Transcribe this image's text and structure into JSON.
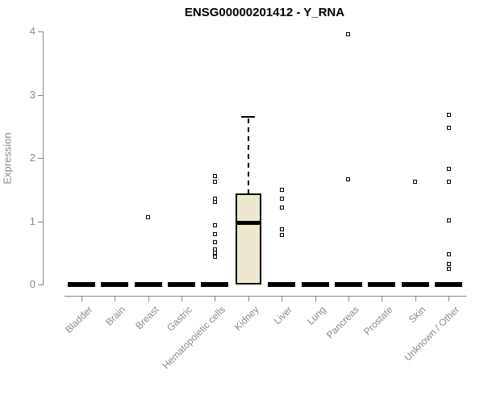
{
  "chart_data": {
    "type": "boxplot",
    "title": "ENSG00000201412 - Y_RNA",
    "ylabel": "Expression",
    "xlabel": "",
    "ylim": [
      0,
      4
    ],
    "yticks": [
      0,
      1,
      2,
      3,
      4
    ],
    "grid": false,
    "legend": null,
    "categories": [
      "Bladder",
      "Brain",
      "Breast",
      "Gastric",
      "Hematopoietic cells",
      "Kidney",
      "Liver",
      "Lung",
      "Pancreas",
      "Prostate",
      "Skin",
      "Unknown / Other"
    ],
    "boxes": [
      {
        "category": "Bladder",
        "min": 0,
        "q1": 0,
        "median": 0,
        "q3": 0,
        "max": 0,
        "outliers": []
      },
      {
        "category": "Brain",
        "min": 0,
        "q1": 0,
        "median": 0,
        "q3": 0,
        "max": 0,
        "outliers": []
      },
      {
        "category": "Breast",
        "min": 0,
        "q1": 0,
        "median": 0,
        "q3": 0,
        "max": 0,
        "outliers": [
          1.06
        ]
      },
      {
        "category": "Gastric",
        "min": 0,
        "q1": 0,
        "median": 0,
        "q3": 0,
        "max": 0,
        "outliers": []
      },
      {
        "category": "Hematopoietic cells",
        "min": 0,
        "q1": 0,
        "median": 0,
        "q3": 0,
        "max": 0,
        "outliers": [
          1.71,
          1.63,
          1.36,
          1.31,
          0.93,
          0.8,
          0.67,
          0.56,
          0.5,
          0.44
        ]
      },
      {
        "category": "Kidney",
        "min": 0,
        "q1": 0,
        "median": 0.97,
        "q3": 1.44,
        "max": 2.65,
        "outliers": []
      },
      {
        "category": "Liver",
        "min": 0,
        "q1": 0,
        "median": 0,
        "q3": 0,
        "max": 0,
        "outliers": [
          1.5,
          1.36,
          1.22,
          0.87,
          0.78
        ]
      },
      {
        "category": "Lung",
        "min": 0,
        "q1": 0,
        "median": 0,
        "q3": 0,
        "max": 0,
        "outliers": []
      },
      {
        "category": "Pancreas",
        "min": 0,
        "q1": 0,
        "median": 0,
        "q3": 0,
        "max": 0,
        "outliers": [
          3.95,
          1.66
        ]
      },
      {
        "category": "Prostate",
        "min": 0,
        "q1": 0,
        "median": 0,
        "q3": 0,
        "max": 0,
        "outliers": []
      },
      {
        "category": "Skin",
        "min": 0,
        "q1": 0,
        "median": 0,
        "q3": 0,
        "max": 0,
        "outliers": [
          1.63
        ]
      },
      {
        "category": "Unknown / Other",
        "min": 0,
        "q1": 0,
        "median": 0,
        "q3": 0,
        "max": 0,
        "outliers": [
          2.68,
          2.48,
          1.83,
          1.63,
          1.01,
          0.48,
          0.33,
          0.25
        ]
      }
    ],
    "colors": {
      "box_fill": "#EDE8CE",
      "box_border": "#000000",
      "median": "#000000",
      "outlier": "#000000",
      "axis": "#888888",
      "tick_label": "#8a8a8a",
      "title": "#000000"
    }
  }
}
